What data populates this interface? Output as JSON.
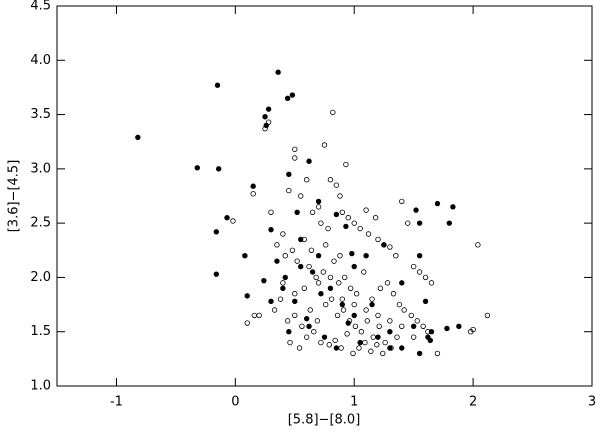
{
  "chart_data": {
    "type": "scatter",
    "x_label": "[5.8]−[8.0]",
    "y_label": "[3.6]−[4.5]",
    "xlim": [
      -1.5,
      3
    ],
    "xticks": [
      -1,
      0,
      1,
      2,
      3
    ],
    "ylim": [
      1,
      4.5
    ],
    "yticks": [
      {
        "value": 1,
        "label": "1.0"
      },
      {
        "value": 1.5,
        "label": "1.5"
      },
      {
        "value": 2,
        "label": "2.0"
      },
      {
        "value": 2.5,
        "label": "2.5"
      },
      {
        "value": 3,
        "label": "3.0"
      },
      {
        "value": 3.5,
        "label": "3.5"
      },
      {
        "value": 4,
        "label": "4.0"
      },
      {
        "value": 4.5,
        "label": "4.5"
      }
    ],
    "series": [
      {
        "marker": "open",
        "color": "#000000",
        "x": [
          0.82,
          0.25,
          0.28,
          0.5,
          0.5,
          0.75,
          0.93,
          -0.02,
          2.04,
          2.12,
          1.98,
          2.0,
          0.1,
          0.16,
          0.2,
          0.15,
          0.45,
          0.55,
          0.6,
          0.65,
          0.7,
          0.72,
          0.78,
          0.8,
          0.85,
          0.88,
          0.9,
          0.95,
          1.0,
          1.05,
          1.1,
          1.12,
          1.18,
          1.2,
          1.25,
          1.3,
          1.35,
          1.4,
          1.45,
          1.5,
          1.55,
          1.6,
          1.65,
          1.7,
          0.3,
          0.35,
          0.4,
          0.42,
          0.48,
          0.52,
          0.58,
          0.62,
          0.68,
          0.74,
          0.83,
          0.87,
          0.92,
          0.97,
          1.02,
          1.08,
          1.15,
          1.22,
          1.28,
          1.33,
          1.38,
          1.42,
          1.48,
          1.53,
          1.58,
          1.62,
          0.33,
          0.38,
          0.44,
          0.5,
          0.56,
          0.63,
          0.69,
          0.76,
          0.81,
          0.86,
          0.91,
          0.96,
          1.01,
          1.06,
          1.11,
          1.16,
          1.21,
          1.26,
          1.31,
          1.36,
          0.46,
          0.54,
          0.6,
          0.66,
          0.72,
          0.79,
          0.84,
          0.89,
          0.94,
          0.99,
          1.04,
          1.09,
          1.14,
          1.19,
          1.24,
          0.4,
          0.5,
          0.58,
          0.7,
          0.8,
          0.9,
          1.0,
          1.1,
          1.2,
          1.3,
          1.4,
          1.5,
          0.64,
          0.76,
          0.88
        ],
        "values": [
          3.52,
          3.37,
          3.43,
          3.18,
          3.1,
          3.22,
          3.04,
          2.52,
          2.3,
          1.65,
          1.5,
          1.52,
          1.58,
          1.65,
          1.65,
          2.77,
          2.8,
          2.75,
          2.9,
          2.6,
          2.65,
          2.5,
          2.45,
          2.9,
          2.85,
          2.75,
          2.6,
          2.55,
          2.5,
          2.45,
          2.62,
          2.4,
          2.55,
          2.35,
          2.3,
          2.28,
          2.2,
          2.7,
          2.5,
          2.1,
          2.05,
          2.0,
          1.95,
          1.3,
          2.6,
          2.3,
          2.4,
          2.2,
          2.25,
          2.15,
          2.35,
          2.1,
          2.0,
          2.05,
          2.15,
          1.95,
          2.0,
          1.9,
          1.85,
          2.05,
          1.8,
          1.9,
          1.95,
          1.85,
          1.75,
          1.7,
          1.65,
          1.6,
          1.55,
          1.5,
          1.7,
          1.8,
          1.6,
          1.65,
          1.55,
          1.7,
          1.6,
          1.75,
          1.8,
          1.65,
          1.7,
          1.6,
          1.55,
          1.5,
          1.6,
          1.45,
          1.55,
          1.4,
          1.35,
          1.45,
          1.4,
          1.35,
          1.45,
          1.5,
          1.4,
          1.38,
          1.42,
          1.35,
          1.48,
          1.3,
          1.35,
          1.4,
          1.32,
          1.38,
          1.3,
          1.95,
          1.85,
          1.9,
          1.95,
          2.0,
          1.8,
          1.75,
          1.7,
          1.65,
          1.6,
          1.55,
          1.45,
          2.25,
          2.3,
          2.2
        ]
      },
      {
        "marker": "filled",
        "color": "#000000",
        "x": [
          -0.82,
          -0.15,
          0.36,
          0.25,
          0.28,
          0.26,
          0.44,
          0.48,
          -0.32,
          -0.14,
          0.62,
          -0.16,
          -0.16,
          -0.07,
          0.15,
          0.08,
          0.1,
          0.3,
          0.24,
          0.52,
          0.7,
          0.85,
          0.93,
          0.7,
          0.55,
          0.35,
          0.4,
          0.5,
          0.62,
          0.75,
          0.8,
          0.9,
          1.0,
          1.05,
          1.15,
          1.2,
          1.3,
          1.4,
          1.5,
          1.55,
          1.62,
          1.64,
          1.65,
          1.7,
          1.52,
          1.55,
          1.8,
          1.83,
          1.88,
          1.78,
          1.6,
          1.4,
          1.0,
          0.95,
          0.85,
          0.6,
          0.45,
          0.3,
          0.55,
          1.1,
          1.25,
          0.98,
          0.72,
          0.65,
          1.3,
          0.45,
          0.42,
          1.55
        ],
        "values": [
          3.29,
          3.77,
          3.89,
          3.48,
          3.55,
          3.4,
          3.65,
          3.68,
          3.01,
          3.0,
          3.07,
          2.42,
          2.03,
          2.55,
          2.84,
          2.2,
          1.83,
          2.44,
          1.97,
          2.6,
          2.7,
          2.58,
          2.47,
          2.2,
          2.1,
          2.15,
          1.9,
          1.78,
          1.55,
          1.45,
          1.9,
          1.75,
          1.65,
          1.4,
          1.75,
          1.45,
          1.5,
          1.35,
          1.55,
          1.3,
          1.45,
          1.42,
          1.5,
          2.68,
          2.62,
          2.5,
          2.5,
          2.65,
          1.55,
          1.53,
          1.78,
          1.95,
          2.1,
          1.58,
          1.35,
          1.62,
          1.5,
          1.78,
          2.35,
          2.2,
          2.3,
          2.22,
          1.85,
          2.05,
          1.35,
          2.95,
          2.0,
          2.2
        ]
      }
    ]
  }
}
